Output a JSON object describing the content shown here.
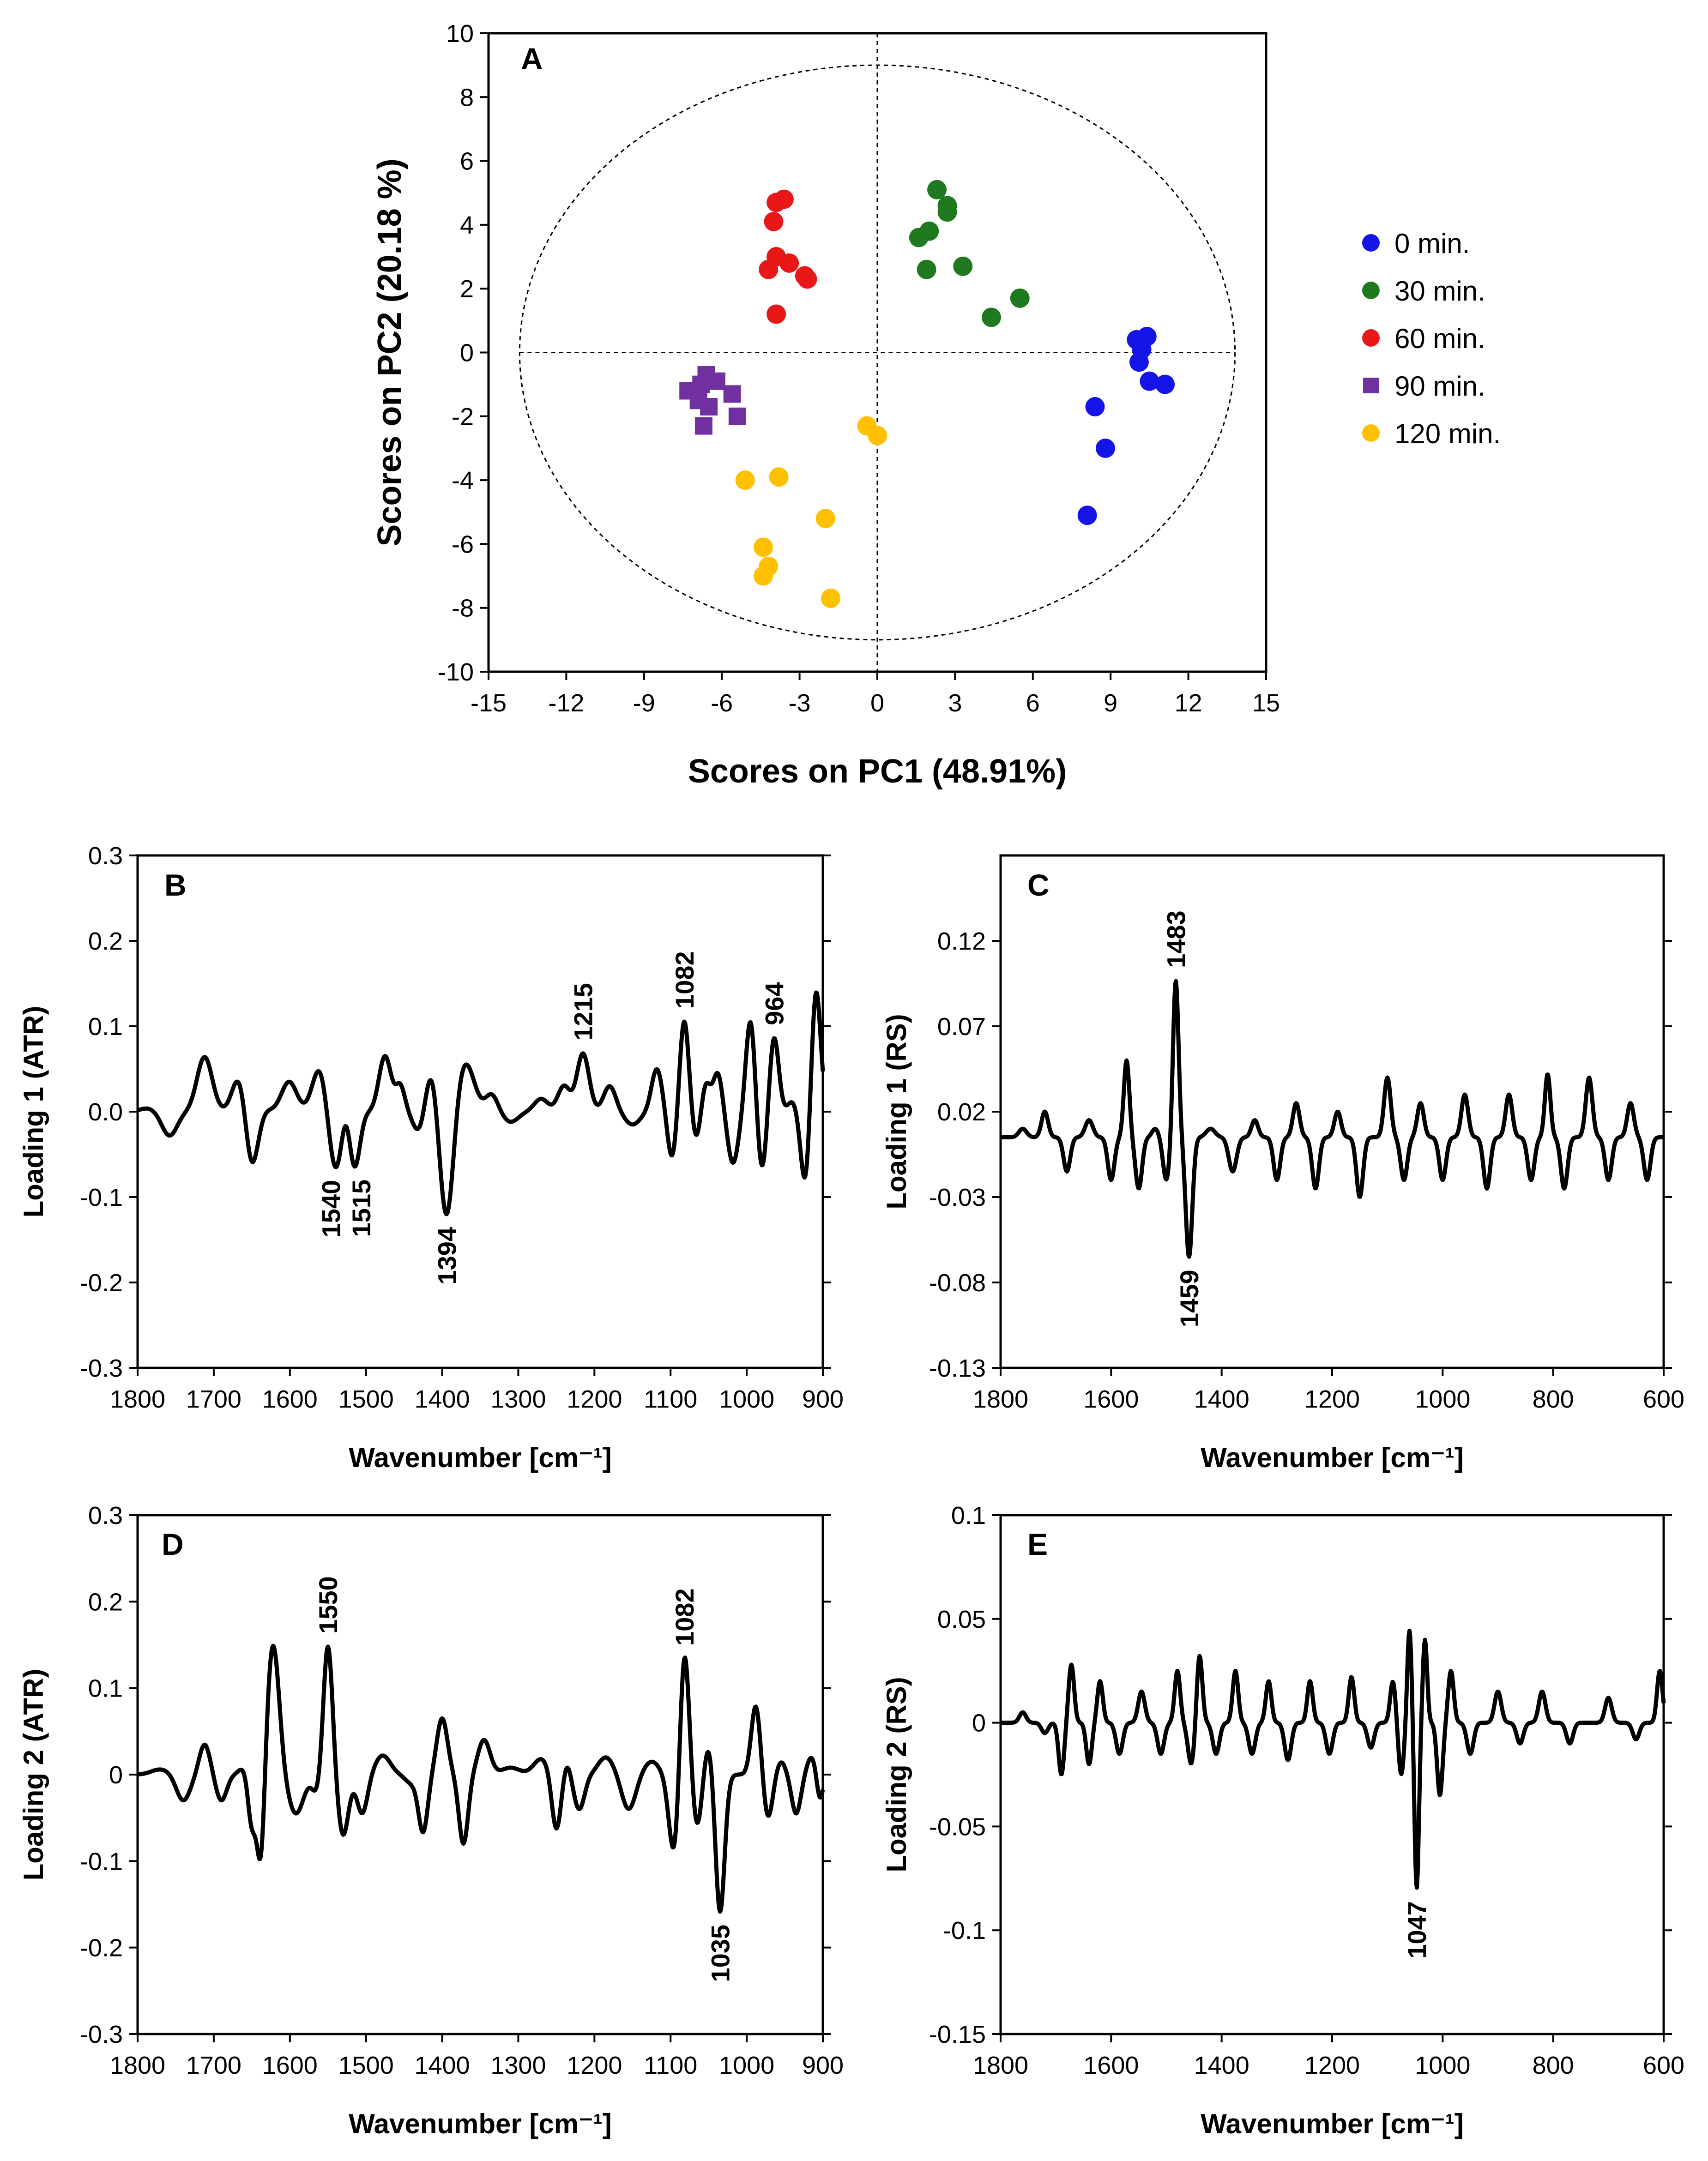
{
  "colors": {
    "0 min.": "#1414e6",
    "30 min.": "#1f7a1f",
    "60 min.": "#e81818",
    "90 min.": "#7030a0",
    "120 min.": "#ffc000",
    "line": "#000000"
  },
  "chart_data": [
    {
      "id": "A",
      "type": "scatter",
      "panel": "A",
      "xlabel": "Scores on PC1 (48.91%)",
      "ylabel": "Scores on PC2 (20.18 %)",
      "xlim": [
        -15,
        15
      ],
      "ylim": [
        -10,
        10
      ],
      "xticks": [
        -15,
        -12,
        -9,
        -6,
        -3,
        0,
        3,
        6,
        9,
        12,
        15
      ],
      "yticks": [
        -10,
        -8,
        -6,
        -4,
        -2,
        0,
        2,
        4,
        6,
        8,
        10
      ],
      "ellipse": {
        "rx": 13.8,
        "ry": 9.0
      },
      "legend_position": "right",
      "series": [
        {
          "name": "0 min.",
          "marker": "circle",
          "points": [
            [
              10.0,
              0.4
            ],
            [
              10.4,
              0.5
            ],
            [
              10.2,
              0.1
            ],
            [
              10.1,
              -0.3
            ],
            [
              10.5,
              -0.9
            ],
            [
              11.1,
              -1.0
            ],
            [
              8.4,
              -1.7
            ],
            [
              8.8,
              -3.0
            ],
            [
              8.1,
              -5.1
            ]
          ]
        },
        {
          "name": "30 min.",
          "marker": "circle",
          "points": [
            [
              2.3,
              5.1
            ],
            [
              2.7,
              4.6
            ],
            [
              2.7,
              4.4
            ],
            [
              2.0,
              3.8
            ],
            [
              1.6,
              3.6
            ],
            [
              3.3,
              2.7
            ],
            [
              1.9,
              2.6
            ],
            [
              5.5,
              1.7
            ],
            [
              4.4,
              1.1
            ]
          ]
        },
        {
          "name": "60 min.",
          "marker": "circle",
          "points": [
            [
              -3.6,
              4.8
            ],
            [
              -3.9,
              4.7
            ],
            [
              -4.0,
              4.1
            ],
            [
              -3.9,
              3.0
            ],
            [
              -3.4,
              2.8
            ],
            [
              -4.2,
              2.6
            ],
            [
              -2.8,
              2.4
            ],
            [
              -2.7,
              2.3
            ],
            [
              -3.9,
              1.2
            ]
          ]
        },
        {
          "name": "90 min.",
          "marker": "square",
          "points": [
            [
              -6.6,
              -0.7
            ],
            [
              -6.8,
              -1.0
            ],
            [
              -6.2,
              -0.9
            ],
            [
              -7.3,
              -1.2
            ],
            [
              -5.6,
              -1.3
            ],
            [
              -6.9,
              -1.5
            ],
            [
              -6.5,
              -1.7
            ],
            [
              -5.4,
              -2.0
            ],
            [
              -6.7,
              -2.3
            ]
          ]
        },
        {
          "name": "120 min.",
          "marker": "circle",
          "points": [
            [
              -0.4,
              -2.3
            ],
            [
              0.0,
              -2.6
            ],
            [
              -5.1,
              -4.0
            ],
            [
              -3.8,
              -3.9
            ],
            [
              -2.0,
              -5.2
            ],
            [
              -4.4,
              -6.1
            ],
            [
              -4.2,
              -6.7
            ],
            [
              -4.4,
              -7.0
            ],
            [
              -1.8,
              -7.7
            ]
          ]
        }
      ]
    },
    {
      "id": "B",
      "type": "line",
      "panel": "B",
      "xlabel": "Wavenumber [cm⁻¹]",
      "ylabel": "Loading 1 (ATR)",
      "xlim": [
        1800,
        900
      ],
      "ylim": [
        -0.3,
        0.3
      ],
      "xticks": [
        1800,
        1700,
        1600,
        1500,
        1400,
        1300,
        1200,
        1100,
        1000,
        900
      ],
      "yticks": [
        -0.3,
        -0.2,
        -0.1,
        0.0,
        0.1,
        0.2,
        0.3
      ],
      "ytick_labels": [
        "-0.3",
        "-0.2",
        "-0.1",
        "0.0",
        "0.1",
        "0.2",
        "0.3"
      ],
      "baseline": 0,
      "features": [
        [
          1787,
          0.004,
          10
        ],
        [
          1758,
          -0.028,
          10
        ],
        [
          1712,
          0.064,
          10
        ],
        [
          1667,
          0.04,
          9
        ],
        [
          1650,
          -0.065,
          8
        ],
        [
          1630,
          0.002,
          8
        ],
        [
          1601,
          0.035,
          10
        ],
        [
          1560,
          0.055,
          10
        ],
        [
          1540,
          -0.075,
          10
        ],
        [
          1527,
          0.03,
          6
        ],
        [
          1515,
          -0.065,
          7
        ],
        [
          1475,
          0.065,
          8
        ],
        [
          1455,
          0.03,
          6
        ],
        [
          1430,
          -0.025,
          8
        ],
        [
          1414,
          0.05,
          8
        ],
        [
          1394,
          -0.13,
          9
        ],
        [
          1370,
          0.058,
          12
        ],
        [
          1335,
          0.02,
          8
        ],
        [
          1310,
          -0.012,
          10
        ],
        [
          1270,
          0.015,
          9
        ],
        [
          1240,
          0.03,
          8
        ],
        [
          1215,
          0.068,
          8
        ],
        [
          1180,
          0.03,
          8
        ],
        [
          1150,
          -0.015,
          10
        ],
        [
          1118,
          0.05,
          7
        ],
        [
          1098,
          -0.055,
          6
        ],
        [
          1082,
          0.108,
          6
        ],
        [
          1066,
          -0.035,
          6
        ],
        [
          1054,
          0.035,
          6
        ],
        [
          1038,
          0.045,
          6
        ],
        [
          1018,
          -0.06,
          7
        ],
        [
          995,
          0.108,
          6
        ],
        [
          980,
          -0.07,
          6
        ],
        [
          964,
          0.088,
          6
        ],
        [
          940,
          0.012,
          6
        ],
        [
          923,
          -0.085,
          6
        ],
        [
          909,
          0.145,
          6
        ]
      ],
      "peak_labels": [
        {
          "x": 1540,
          "label": "1540"
        },
        {
          "x": 1515,
          "label": "1515"
        },
        {
          "x": 1394,
          "label": "1394"
        },
        {
          "x": 1215,
          "label": "1215"
        },
        {
          "x": 1082,
          "label": "1082"
        },
        {
          "x": 964,
          "label": "964"
        }
      ]
    },
    {
      "id": "C",
      "type": "line",
      "panel": "C",
      "xlabel": "Wavenumber [cm⁻¹]",
      "ylabel": "Loading 1 (RS)",
      "xlim": [
        1800,
        600
      ],
      "ylim": [
        -0.13,
        0.17
      ],
      "xticks": [
        1800,
        1600,
        1400,
        1200,
        1000,
        800,
        600
      ],
      "yticks": [
        -0.13,
        -0.08,
        -0.03,
        0.02,
        0.07,
        0.12
      ],
      "ytick_labels": [
        "-0.13",
        "-0.08",
        "-0.03",
        "0.02",
        "0.07",
        "0.12"
      ],
      "baseline": 0.005,
      "features": [
        [
          1760,
          0.01,
          7
        ],
        [
          1720,
          0.02,
          6
        ],
        [
          1680,
          -0.015,
          6
        ],
        [
          1640,
          0.015,
          7
        ],
        [
          1600,
          -0.02,
          6
        ],
        [
          1572,
          0.05,
          5
        ],
        [
          1550,
          -0.025,
          6
        ],
        [
          1520,
          0.01,
          6
        ],
        [
          1500,
          -0.02,
          6
        ],
        [
          1483,
          0.097,
          5
        ],
        [
          1459,
          -0.065,
          6
        ],
        [
          1420,
          0.01,
          8
        ],
        [
          1380,
          -0.015,
          7
        ],
        [
          1340,
          0.015,
          6
        ],
        [
          1300,
          -0.02,
          6
        ],
        [
          1265,
          0.025,
          6
        ],
        [
          1230,
          -0.025,
          6
        ],
        [
          1190,
          0.02,
          6
        ],
        [
          1150,
          -0.03,
          6
        ],
        [
          1100,
          0.04,
          6
        ],
        [
          1070,
          -0.02,
          6
        ],
        [
          1040,
          0.025,
          6
        ],
        [
          1000,
          -0.02,
          6
        ],
        [
          960,
          0.03,
          6
        ],
        [
          920,
          -0.025,
          6
        ],
        [
          880,
          0.03,
          6
        ],
        [
          840,
          -0.02,
          6
        ],
        [
          810,
          0.042,
          5
        ],
        [
          780,
          -0.025,
          6
        ],
        [
          735,
          0.04,
          6
        ],
        [
          700,
          -0.02,
          6
        ],
        [
          660,
          0.025,
          6
        ],
        [
          630,
          -0.02,
          6
        ]
      ],
      "peak_labels": [
        {
          "x": 1483,
          "label": "1483"
        },
        {
          "x": 1459,
          "label": "1459"
        }
      ]
    },
    {
      "id": "D",
      "type": "line",
      "panel": "D",
      "xlabel": "Wavenumber [cm⁻¹]",
      "ylabel": "Loading 2 (ATR)",
      "xlim": [
        1800,
        900
      ],
      "ylim": [
        -0.3,
        0.3
      ],
      "xticks": [
        1800,
        1700,
        1600,
        1500,
        1400,
        1300,
        1200,
        1100,
        1000,
        900
      ],
      "yticks": [
        -0.3,
        -0.2,
        -0.1,
        0,
        0.1,
        0.2,
        0.3
      ],
      "ytick_labels": [
        "-0.3",
        "-0.2",
        "-0.1",
        "0",
        "0.1",
        "0.2",
        "0.3"
      ],
      "baseline": 0,
      "features": [
        [
          1770,
          0.006,
          12
        ],
        [
          1740,
          -0.03,
          9
        ],
        [
          1712,
          0.035,
          7
        ],
        [
          1690,
          -0.03,
          7
        ],
        [
          1660,
          0.008,
          7
        ],
        [
          1650,
          -0.06,
          5
        ],
        [
          1638,
          -0.11,
          5
        ],
        [
          1622,
          0.15,
          8
        ],
        [
          1592,
          -0.045,
          10
        ],
        [
          1565,
          -0.02,
          6
        ],
        [
          1550,
          0.15,
          6
        ],
        [
          1530,
          -0.07,
          7
        ],
        [
          1505,
          -0.045,
          7
        ],
        [
          1478,
          0.022,
          10
        ],
        [
          1440,
          -0.01,
          8
        ],
        [
          1425,
          -0.065,
          6
        ],
        [
          1400,
          0.065,
          7
        ],
        [
          1372,
          -0.08,
          6
        ],
        [
          1345,
          0.04,
          8
        ],
        [
          1310,
          0.008,
          12
        ],
        [
          1270,
          0.018,
          10
        ],
        [
          1250,
          -0.065,
          6
        ],
        [
          1236,
          0.015,
          5
        ],
        [
          1220,
          -0.04,
          7
        ],
        [
          1185,
          0.02,
          10
        ],
        [
          1155,
          -0.04,
          9
        ],
        [
          1125,
          0.015,
          10
        ],
        [
          1095,
          -0.095,
          7
        ],
        [
          1082,
          0.152,
          6
        ],
        [
          1065,
          -0.06,
          6
        ],
        [
          1050,
          0.035,
          6
        ],
        [
          1035,
          -0.16,
          6
        ],
        [
          1010,
          0.0,
          8
        ],
        [
          988,
          0.08,
          6
        ],
        [
          972,
          -0.05,
          6
        ],
        [
          955,
          0.015,
          6
        ],
        [
          935,
          -0.045,
          6
        ],
        [
          915,
          0.02,
          6
        ],
        [
          904,
          -0.03,
          4
        ]
      ],
      "peak_labels": [
        {
          "x": 1550,
          "label": "1550"
        },
        {
          "x": 1082,
          "label": "1082"
        },
        {
          "x": 1035,
          "label": "1035"
        }
      ]
    },
    {
      "id": "E",
      "type": "line",
      "panel": "E",
      "xlabel": "Wavenumber [cm⁻¹]",
      "ylabel": "Loading 2 (RS)",
      "xlim": [
        1800,
        600
      ],
      "ylim": [
        -0.15,
        0.1
      ],
      "xticks": [
        1800,
        1600,
        1400,
        1200,
        1000,
        800,
        600
      ],
      "yticks": [
        -0.15,
        -0.1,
        -0.05,
        0,
        0.05,
        0.1
      ],
      "ytick_labels": [
        "-0.15",
        "-0.1",
        "-0.05",
        "0",
        "0.05",
        "0.1"
      ],
      "baseline": 0,
      "features": [
        [
          1760,
          0.005,
          6
        ],
        [
          1720,
          -0.005,
          6
        ],
        [
          1690,
          -0.025,
          5
        ],
        [
          1672,
          0.028,
          5
        ],
        [
          1640,
          -0.02,
          5
        ],
        [
          1620,
          0.02,
          5
        ],
        [
          1585,
          -0.015,
          6
        ],
        [
          1545,
          0.015,
          6
        ],
        [
          1510,
          -0.015,
          6
        ],
        [
          1480,
          0.025,
          5
        ],
        [
          1455,
          -0.02,
          6
        ],
        [
          1440,
          0.033,
          5
        ],
        [
          1410,
          -0.015,
          6
        ],
        [
          1375,
          0.025,
          5
        ],
        [
          1345,
          -0.015,
          6
        ],
        [
          1315,
          0.02,
          5
        ],
        [
          1280,
          -0.018,
          6
        ],
        [
          1240,
          0.02,
          5
        ],
        [
          1205,
          -0.015,
          6
        ],
        [
          1165,
          0.022,
          5
        ],
        [
          1130,
          -0.012,
          6
        ],
        [
          1090,
          0.02,
          5
        ],
        [
          1075,
          -0.025,
          5
        ],
        [
          1060,
          0.045,
          4
        ],
        [
          1047,
          -0.08,
          4
        ],
        [
          1032,
          0.04,
          4
        ],
        [
          1005,
          -0.035,
          5
        ],
        [
          985,
          0.025,
          5
        ],
        [
          950,
          -0.015,
          6
        ],
        [
          900,
          0.015,
          6
        ],
        [
          860,
          -0.01,
          6
        ],
        [
          820,
          0.015,
          6
        ],
        [
          770,
          -0.01,
          6
        ],
        [
          700,
          0.012,
          6
        ],
        [
          650,
          -0.008,
          6
        ],
        [
          607,
          0.025,
          5
        ]
      ],
      "peak_labels": [
        {
          "x": 1047,
          "label": "1047"
        }
      ]
    }
  ]
}
